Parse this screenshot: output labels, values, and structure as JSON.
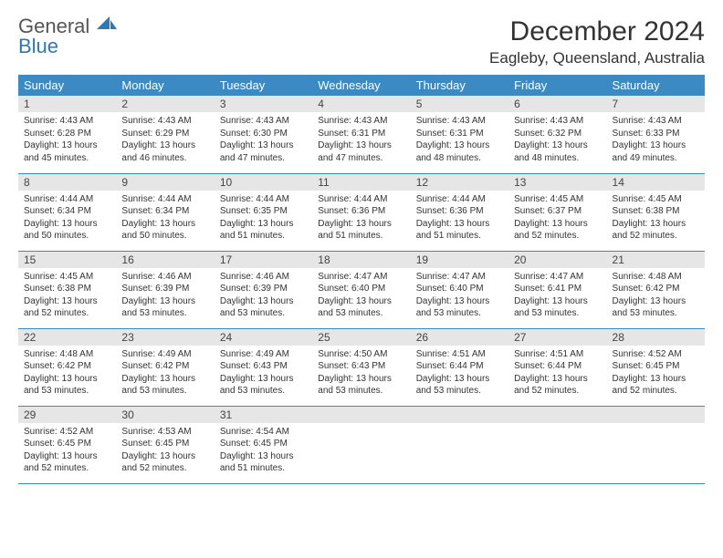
{
  "brand": {
    "line1": "General",
    "line2": "Blue",
    "line2_color": "#2f78b5"
  },
  "title": "December 2024",
  "location": "Eagleby, Queensland, Australia",
  "colors": {
    "header_bg": "#3b8ac4",
    "header_text": "#ffffff",
    "daynum_bg": "#e6e6e6",
    "border": "#3b8ac4",
    "text": "#333333"
  },
  "weekdays": [
    "Sunday",
    "Monday",
    "Tuesday",
    "Wednesday",
    "Thursday",
    "Friday",
    "Saturday"
  ],
  "weeks": [
    [
      {
        "day": "1",
        "sunrise": "4:43 AM",
        "sunset": "6:28 PM",
        "daylight": "13 hours and 45 minutes."
      },
      {
        "day": "2",
        "sunrise": "4:43 AM",
        "sunset": "6:29 PM",
        "daylight": "13 hours and 46 minutes."
      },
      {
        "day": "3",
        "sunrise": "4:43 AM",
        "sunset": "6:30 PM",
        "daylight": "13 hours and 47 minutes."
      },
      {
        "day": "4",
        "sunrise": "4:43 AM",
        "sunset": "6:31 PM",
        "daylight": "13 hours and 47 minutes."
      },
      {
        "day": "5",
        "sunrise": "4:43 AM",
        "sunset": "6:31 PM",
        "daylight": "13 hours and 48 minutes."
      },
      {
        "day": "6",
        "sunrise": "4:43 AM",
        "sunset": "6:32 PM",
        "daylight": "13 hours and 48 minutes."
      },
      {
        "day": "7",
        "sunrise": "4:43 AM",
        "sunset": "6:33 PM",
        "daylight": "13 hours and 49 minutes."
      }
    ],
    [
      {
        "day": "8",
        "sunrise": "4:44 AM",
        "sunset": "6:34 PM",
        "daylight": "13 hours and 50 minutes."
      },
      {
        "day": "9",
        "sunrise": "4:44 AM",
        "sunset": "6:34 PM",
        "daylight": "13 hours and 50 minutes."
      },
      {
        "day": "10",
        "sunrise": "4:44 AM",
        "sunset": "6:35 PM",
        "daylight": "13 hours and 51 minutes."
      },
      {
        "day": "11",
        "sunrise": "4:44 AM",
        "sunset": "6:36 PM",
        "daylight": "13 hours and 51 minutes."
      },
      {
        "day": "12",
        "sunrise": "4:44 AM",
        "sunset": "6:36 PM",
        "daylight": "13 hours and 51 minutes."
      },
      {
        "day": "13",
        "sunrise": "4:45 AM",
        "sunset": "6:37 PM",
        "daylight": "13 hours and 52 minutes."
      },
      {
        "day": "14",
        "sunrise": "4:45 AM",
        "sunset": "6:38 PM",
        "daylight": "13 hours and 52 minutes."
      }
    ],
    [
      {
        "day": "15",
        "sunrise": "4:45 AM",
        "sunset": "6:38 PM",
        "daylight": "13 hours and 52 minutes."
      },
      {
        "day": "16",
        "sunrise": "4:46 AM",
        "sunset": "6:39 PM",
        "daylight": "13 hours and 53 minutes."
      },
      {
        "day": "17",
        "sunrise": "4:46 AM",
        "sunset": "6:39 PM",
        "daylight": "13 hours and 53 minutes."
      },
      {
        "day": "18",
        "sunrise": "4:47 AM",
        "sunset": "6:40 PM",
        "daylight": "13 hours and 53 minutes."
      },
      {
        "day": "19",
        "sunrise": "4:47 AM",
        "sunset": "6:40 PM",
        "daylight": "13 hours and 53 minutes."
      },
      {
        "day": "20",
        "sunrise": "4:47 AM",
        "sunset": "6:41 PM",
        "daylight": "13 hours and 53 minutes."
      },
      {
        "day": "21",
        "sunrise": "4:48 AM",
        "sunset": "6:42 PM",
        "daylight": "13 hours and 53 minutes."
      }
    ],
    [
      {
        "day": "22",
        "sunrise": "4:48 AM",
        "sunset": "6:42 PM",
        "daylight": "13 hours and 53 minutes."
      },
      {
        "day": "23",
        "sunrise": "4:49 AM",
        "sunset": "6:42 PM",
        "daylight": "13 hours and 53 minutes."
      },
      {
        "day": "24",
        "sunrise": "4:49 AM",
        "sunset": "6:43 PM",
        "daylight": "13 hours and 53 minutes."
      },
      {
        "day": "25",
        "sunrise": "4:50 AM",
        "sunset": "6:43 PM",
        "daylight": "13 hours and 53 minutes."
      },
      {
        "day": "26",
        "sunrise": "4:51 AM",
        "sunset": "6:44 PM",
        "daylight": "13 hours and 53 minutes."
      },
      {
        "day": "27",
        "sunrise": "4:51 AM",
        "sunset": "6:44 PM",
        "daylight": "13 hours and 52 minutes."
      },
      {
        "day": "28",
        "sunrise": "4:52 AM",
        "sunset": "6:45 PM",
        "daylight": "13 hours and 52 minutes."
      }
    ],
    [
      {
        "day": "29",
        "sunrise": "4:52 AM",
        "sunset": "6:45 PM",
        "daylight": "13 hours and 52 minutes."
      },
      {
        "day": "30",
        "sunrise": "4:53 AM",
        "sunset": "6:45 PM",
        "daylight": "13 hours and 52 minutes."
      },
      {
        "day": "31",
        "sunrise": "4:54 AM",
        "sunset": "6:45 PM",
        "daylight": "13 hours and 51 minutes."
      },
      null,
      null,
      null,
      null
    ]
  ],
  "labels": {
    "sunrise": "Sunrise: ",
    "sunset": "Sunset: ",
    "daylight": "Daylight: "
  }
}
